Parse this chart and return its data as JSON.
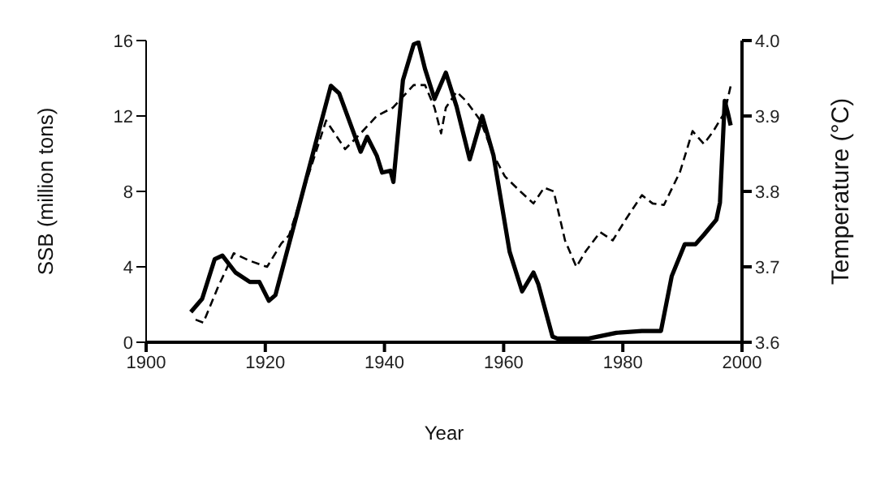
{
  "chart_data": {
    "type": "line",
    "xlabel": "Year",
    "ylabel": "SSB (million tons)",
    "y2label": "Temperature (°C)",
    "xlim": [
      1900,
      2000
    ],
    "xticks": [
      1900,
      1920,
      1940,
      1960,
      1980,
      2000
    ],
    "ylim": [
      0,
      16
    ],
    "yticks": [
      0,
      4,
      8,
      12,
      16
    ],
    "y2lim": [
      3.6,
      4.0
    ],
    "y2ticks": [
      {
        "value": 3.6,
        "label": "3.6"
      },
      {
        "value": 3.7,
        "label": "3.7"
      },
      {
        "value": 3.8,
        "label": "3.8"
      },
      {
        "value": 3.9,
        "label": "3.9"
      },
      {
        "value": 4.0,
        "label": "4.0"
      }
    ],
    "grid": false,
    "legend": false,
    "marker": "none",
    "series": [
      {
        "color": "#000000",
        "line_style": "solid",
        "x": [
          1907.5,
          1909.4,
          1911.5,
          1912.8,
          1915,
          1917.4,
          1919,
          1920.6,
          1921.7,
          1925.4,
          1928.9,
          1931,
          1932.4,
          1936,
          1937.1,
          1938.7,
          1939.6,
          1941,
          1941.5,
          1943.1,
          1944.9,
          1945.7,
          1946.8,
          1948.4,
          1950.3,
          1952.1,
          1954.3,
          1956.4,
          1958.3,
          1961,
          1963.1,
          1965,
          1965.8,
          1968.2,
          1969,
          1974.3,
          1978.9,
          1983.2,
          1986.4,
          1988.2,
          1990.4,
          1992.2,
          1993.6,
          1995.7,
          1996.3,
          1997.1,
          1997.6,
          1998.1
        ],
        "values": [
          1.6,
          2.3,
          4.4,
          4.6,
          3.7,
          3.2,
          3.2,
          2.2,
          2.5,
          6.9,
          11.1,
          13.6,
          13.2,
          10.1,
          10.9,
          9.9,
          9.0,
          9.1,
          8.5,
          13.9,
          15.8,
          15.9,
          14.5,
          12.9,
          14.3,
          12.5,
          9.7,
          12.0,
          9.9,
          4.8,
          2.7,
          3.7,
          3.1,
          0.3,
          0.2,
          0.2,
          0.5,
          0.6,
          0.6,
          3.5,
          5.2,
          5.2,
          5.7,
          6.5,
          7.4,
          12.8,
          12.2,
          11.5
        ]
      },
      {
        "color": "#000000",
        "line_style": "dashed",
        "axis": "y2",
        "x": [
          1908.3,
          1909.6,
          1912,
          1914.7,
          1917.4,
          1920.3,
          1922.7,
          1924,
          1925.7,
          1930.2,
          1933.4,
          1936,
          1938.7,
          1941.4,
          1944.9,
          1946.8,
          1948.4,
          1949.5,
          1950.3,
          1952.1,
          1953.7,
          1956.1,
          1958.3,
          1960.2,
          1962.8,
          1965,
          1966.8,
          1968.4,
          1970.3,
          1972.2,
          1973.8,
          1976.2,
          1978.3,
          1980.5,
          1983.2,
          1985,
          1986.9,
          1989.6,
          1991.7,
          1993.6,
          1995.2,
          1997.1,
          1998.1
        ],
        "values": [
          3.63,
          3.626,
          3.672,
          3.718,
          3.708,
          3.7,
          3.731,
          3.742,
          3.784,
          3.894,
          3.856,
          3.877,
          3.9,
          3.911,
          3.941,
          3.941,
          3.911,
          3.877,
          3.911,
          3.932,
          3.92,
          3.894,
          3.848,
          3.82,
          3.8,
          3.784,
          3.805,
          3.8,
          3.735,
          3.7,
          3.721,
          3.746,
          3.735,
          3.763,
          3.795,
          3.784,
          3.782,
          3.826,
          3.88,
          3.863,
          3.88,
          3.905,
          3.94
        ]
      }
    ]
  }
}
